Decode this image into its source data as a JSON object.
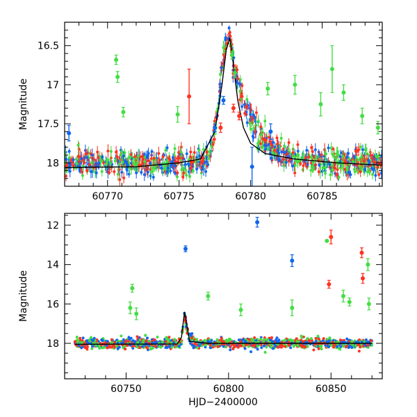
{
  "chart_data": [
    {
      "type": "scatter",
      "title": "",
      "xlabel": "",
      "ylabel": "Magnitude",
      "xlim": [
        60767,
        60789.2
      ],
      "ylim": [
        18.3,
        16.2
      ],
      "y_inverted": true,
      "x_ticks": [
        "60770",
        "60775",
        "60780",
        "60785"
      ],
      "y_ticks": [
        "16.5",
        "17",
        "17.5",
        "18"
      ],
      "grid": false,
      "legend": null,
      "colors": {
        "green": "#44dd44",
        "blue": "#1166ee",
        "red": "#ff3322",
        "model": "#000000"
      },
      "model_curve": {
        "x": [
          60767,
          60772,
          60775,
          60776.5,
          60777.5,
          60778.0,
          60778.3,
          60778.55,
          60778.8,
          60779.1,
          60779.5,
          60780.0,
          60781,
          60783,
          60786,
          60789.2
        ],
        "y": [
          18.06,
          18.05,
          18.0,
          17.95,
          17.6,
          17.0,
          16.55,
          16.4,
          16.75,
          17.2,
          17.55,
          17.75,
          17.88,
          17.95,
          18.0,
          18.03
        ]
      },
      "series": [
        {
          "color": "green",
          "x": [
            60770.6,
            60770.7,
            60771.1,
            60774.9,
            60778.7,
            60778.9,
            60781.2,
            60783.1,
            60784.9,
            60785.7,
            60786.5,
            60787.8,
            60788.9
          ],
          "y": [
            16.68,
            16.9,
            17.35,
            17.38,
            16.62,
            16.85,
            17.05,
            17.0,
            17.25,
            16.8,
            17.1,
            17.4,
            17.55
          ],
          "err": [
            0.06,
            0.07,
            0.06,
            0.1,
            0.05,
            0.06,
            0.08,
            0.12,
            0.15,
            0.3,
            0.1,
            0.1,
            0.08
          ]
        },
        {
          "color": "red",
          "x": [
            60775.7,
            60777.9,
            60778.8,
            60779.2,
            60787.4
          ],
          "y": [
            17.15,
            17.55,
            17.3,
            17.4,
            17.85
          ],
          "err": [
            0.35,
            0.06,
            0.05,
            0.05,
            0.05
          ]
        },
        {
          "color": "blue",
          "x": [
            60767.3,
            60777.5,
            60778.1,
            60780.1,
            60781.4
          ],
          "y": [
            17.62,
            17.55,
            17.2,
            18.05,
            17.6
          ],
          "err": [
            0.1,
            0.05,
            0.05,
            0.25,
            0.1
          ]
        }
      ]
    },
    {
      "type": "scatter",
      "title": "",
      "xlabel": "HJD−2400000",
      "ylabel": "Magnitude",
      "xlim": [
        60720,
        60875
      ],
      "ylim": [
        19.8,
        11.4
      ],
      "y_inverted": true,
      "x_ticks": [
        "60750",
        "60800",
        "60850"
      ],
      "y_ticks": [
        "12",
        "14",
        "16",
        "18"
      ],
      "grid": false,
      "legend": null,
      "colors": {
        "green": "#44dd44",
        "blue": "#1166ee",
        "red": "#ff3322",
        "model": "#000000"
      },
      "model_curve": {
        "x": [
          60725,
          60775,
          60777,
          60778.5,
          60781,
          60790,
          60870
        ],
        "y": [
          18.05,
          18.03,
          17.7,
          16.4,
          17.9,
          18.0,
          18.0
        ]
      },
      "series": [
        {
          "color": "blue",
          "x": [
            60779,
            60814,
            60831
          ],
          "y": [
            13.2,
            11.85,
            13.8
          ],
          "err": [
            0.15,
            0.25,
            0.3
          ]
        },
        {
          "color": "red",
          "x": [
            60850,
            60849,
            60865,
            60865.5
          ],
          "y": [
            12.6,
            15.0,
            13.4,
            14.7
          ],
          "err": [
            0.35,
            0.2,
            0.25,
            0.25
          ]
        },
        {
          "color": "green",
          "x": [
            60848,
            60868,
            60868.5,
            60752,
            60753,
            60755,
            60790,
            60806,
            60831,
            60856,
            60859
          ],
          "y": [
            12.8,
            14.0,
            16.0,
            16.2,
            15.2,
            16.5,
            15.6,
            16.3,
            16.2,
            15.6,
            15.9
          ],
          "err": [
            0.05,
            0.3,
            0.3,
            0.3,
            0.2,
            0.3,
            0.2,
            0.3,
            0.4,
            0.3,
            0.2
          ]
        }
      ]
    }
  ]
}
